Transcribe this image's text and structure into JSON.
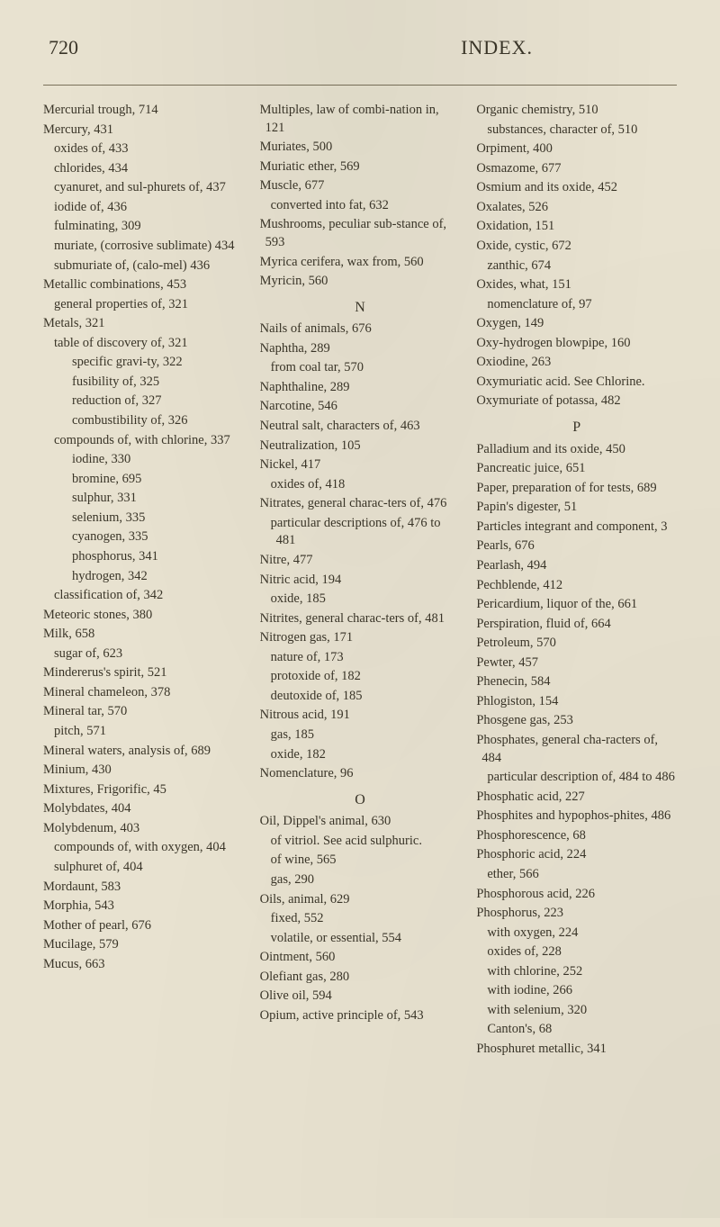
{
  "page_number": "720",
  "title": "INDEX.",
  "columns": [
    [
      {
        "t": "Mercurial trough, 714",
        "cls": "main"
      },
      {
        "t": "Mercury, 431",
        "cls": "main"
      },
      {
        "t": "oxides of, 433",
        "cls": "i1"
      },
      {
        "t": "chlorides, 434",
        "cls": "i1"
      },
      {
        "t": "cyanuret, and sul-phurets of, 437",
        "cls": "i1"
      },
      {
        "t": "iodide of, 436",
        "cls": "i1"
      },
      {
        "t": "fulminating, 309",
        "cls": "i1"
      },
      {
        "t": "muriate, (corrosive sublimate) 434",
        "cls": "i1"
      },
      {
        "t": "submuriate of, (calo-mel) 436",
        "cls": "i1"
      },
      {
        "t": "Metallic combinations, 453",
        "cls": "main"
      },
      {
        "t": "general properties of, 321",
        "cls": "i1"
      },
      {
        "t": "Metals, 321",
        "cls": "main"
      },
      {
        "t": "table of discovery of, 321",
        "cls": "i1"
      },
      {
        "t": "specific gravi-ty, 322",
        "cls": "i2"
      },
      {
        "t": "fusibility of, 325",
        "cls": "i2"
      },
      {
        "t": "reduction of, 327",
        "cls": "i2"
      },
      {
        "t": "combustibility of, 326",
        "cls": "i2"
      },
      {
        "t": "compounds of, with chlorine, 337",
        "cls": "i1"
      },
      {
        "t": "iodine, 330",
        "cls": "i2"
      },
      {
        "t": "bromine, 695",
        "cls": "i2"
      },
      {
        "t": "sulphur, 331",
        "cls": "i2"
      },
      {
        "t": "selenium, 335",
        "cls": "i2"
      },
      {
        "t": "cyanogen, 335",
        "cls": "i2"
      },
      {
        "t": "phosphorus, 341",
        "cls": "i2"
      },
      {
        "t": "hydrogen, 342",
        "cls": "i2"
      },
      {
        "t": "classification of, 342",
        "cls": "i1"
      },
      {
        "t": "Meteoric stones, 380",
        "cls": "main"
      },
      {
        "t": "Milk, 658",
        "cls": "main"
      },
      {
        "t": "sugar of, 623",
        "cls": "i1"
      },
      {
        "t": "Mindererus's spirit, 521",
        "cls": "main"
      },
      {
        "t": "Mineral chameleon, 378",
        "cls": "main"
      },
      {
        "t": "Mineral tar, 570",
        "cls": "main"
      },
      {
        "t": "pitch, 571",
        "cls": "i1"
      },
      {
        "t": "Mineral waters, analysis of, 689",
        "cls": "main"
      },
      {
        "t": "Minium, 430",
        "cls": "main"
      },
      {
        "t": "Mixtures, Frigorific, 45",
        "cls": "main"
      },
      {
        "t": "Molybdates, 404",
        "cls": "main"
      },
      {
        "t": "Molybdenum, 403",
        "cls": "main"
      },
      {
        "t": "compounds of, with oxygen, 404",
        "cls": "i1"
      },
      {
        "t": "sulphuret of, 404",
        "cls": "i1"
      },
      {
        "t": "Mordaunt, 583",
        "cls": "main"
      },
      {
        "t": "Morphia, 543",
        "cls": "main"
      },
      {
        "t": "Mother of pearl, 676",
        "cls": "main"
      },
      {
        "t": "Mucilage, 579",
        "cls": "main"
      },
      {
        "t": "Mucus, 663",
        "cls": "main"
      }
    ],
    [
      {
        "t": "Multiples, law of combi-nation in, 121",
        "cls": "main"
      },
      {
        "t": "Muriates, 500",
        "cls": "main"
      },
      {
        "t": "Muriatic ether, 569",
        "cls": "main"
      },
      {
        "t": "Muscle, 677",
        "cls": "main"
      },
      {
        "t": "converted into fat, 632",
        "cls": "i1"
      },
      {
        "t": "Mushrooms, peculiar sub-stance of, 593",
        "cls": "main"
      },
      {
        "t": "Myrica cerifera, wax from, 560",
        "cls": "main"
      },
      {
        "t": "Myricin, 560",
        "cls": "main"
      },
      {
        "t": "N",
        "cls": "section-letter"
      },
      {
        "t": "Nails of animals, 676",
        "cls": "main"
      },
      {
        "t": "Naphtha, 289",
        "cls": "main"
      },
      {
        "t": "from coal tar, 570",
        "cls": "i1"
      },
      {
        "t": "Naphthaline, 289",
        "cls": "main"
      },
      {
        "t": "Narcotine, 546",
        "cls": "main"
      },
      {
        "t": "Neutral salt, characters of, 463",
        "cls": "main"
      },
      {
        "t": "Neutralization, 105",
        "cls": "main"
      },
      {
        "t": "Nickel, 417",
        "cls": "main"
      },
      {
        "t": "oxides of, 418",
        "cls": "i1"
      },
      {
        "t": "Nitrates, general charac-ters of, 476",
        "cls": "main"
      },
      {
        "t": "particular descriptions of, 476 to 481",
        "cls": "i1"
      },
      {
        "t": "Nitre, 477",
        "cls": "main"
      },
      {
        "t": "Nitric acid, 194",
        "cls": "main"
      },
      {
        "t": "oxide, 185",
        "cls": "i1"
      },
      {
        "t": "Nitrites, general charac-ters of, 481",
        "cls": "main"
      },
      {
        "t": "Nitrogen gas, 171",
        "cls": "main"
      },
      {
        "t": "nature of, 173",
        "cls": "i1"
      },
      {
        "t": "protoxide of, 182",
        "cls": "i1"
      },
      {
        "t": "deutoxide of, 185",
        "cls": "i1"
      },
      {
        "t": "Nitrous acid, 191",
        "cls": "main"
      },
      {
        "t": "gas, 185",
        "cls": "i1"
      },
      {
        "t": "oxide, 182",
        "cls": "i1"
      },
      {
        "t": "Nomenclature, 96",
        "cls": "main"
      },
      {
        "t": "O",
        "cls": "section-letter"
      },
      {
        "t": "Oil, Dippel's animal, 630",
        "cls": "main"
      },
      {
        "t": "of vitriol. See acid sulphuric.",
        "cls": "i1"
      },
      {
        "t": "of wine, 565",
        "cls": "i1"
      },
      {
        "t": "gas, 290",
        "cls": "i1"
      },
      {
        "t": "Oils, animal, 629",
        "cls": "main"
      },
      {
        "t": "fixed, 552",
        "cls": "i1"
      },
      {
        "t": "volatile, or essential, 554",
        "cls": "i1"
      },
      {
        "t": "Ointment, 560",
        "cls": "main"
      },
      {
        "t": "Olefiant gas, 280",
        "cls": "main"
      },
      {
        "t": "Olive oil, 594",
        "cls": "main"
      },
      {
        "t": "Opium, active principle of, 543",
        "cls": "main"
      }
    ],
    [
      {
        "t": "Organic chemistry, 510",
        "cls": "main"
      },
      {
        "t": "substances, character of, 510",
        "cls": "i1"
      },
      {
        "t": "Orpiment, 400",
        "cls": "main"
      },
      {
        "t": "Osmazome, 677",
        "cls": "main"
      },
      {
        "t": "Osmium and its oxide, 452",
        "cls": "main"
      },
      {
        "t": "Oxalates, 526",
        "cls": "main"
      },
      {
        "t": "Oxidation, 151",
        "cls": "main"
      },
      {
        "t": "Oxide, cystic, 672",
        "cls": "main"
      },
      {
        "t": "zanthic, 674",
        "cls": "i1"
      },
      {
        "t": "Oxides, what, 151",
        "cls": "main"
      },
      {
        "t": "nomenclature of, 97",
        "cls": "i1"
      },
      {
        "t": "Oxygen, 149",
        "cls": "main"
      },
      {
        "t": "Oxy-hydrogen blowpipe, 160",
        "cls": "main"
      },
      {
        "t": "Oxiodine, 263",
        "cls": "main"
      },
      {
        "t": "Oxymuriatic acid. See Chlorine.",
        "cls": "main"
      },
      {
        "t": "Oxymuriate of potassa, 482",
        "cls": "main"
      },
      {
        "t": "P",
        "cls": "section-letter"
      },
      {
        "t": "Palladium and its oxide, 450",
        "cls": "main"
      },
      {
        "t": "Pancreatic juice, 651",
        "cls": "main"
      },
      {
        "t": "Paper, preparation of for tests, 689",
        "cls": "main"
      },
      {
        "t": "Papin's digester, 51",
        "cls": "main"
      },
      {
        "t": "Particles integrant and component, 3",
        "cls": "main"
      },
      {
        "t": "Pearls, 676",
        "cls": "main"
      },
      {
        "t": "Pearlash, 494",
        "cls": "main"
      },
      {
        "t": "Pechblende, 412",
        "cls": "main"
      },
      {
        "t": "Pericardium, liquor of the, 661",
        "cls": "main"
      },
      {
        "t": "Perspiration, fluid of, 664",
        "cls": "main"
      },
      {
        "t": "Petroleum, 570",
        "cls": "main"
      },
      {
        "t": "Pewter, 457",
        "cls": "main"
      },
      {
        "t": "Phenecin, 584",
        "cls": "main"
      },
      {
        "t": "Phlogiston, 154",
        "cls": "main"
      },
      {
        "t": "Phosgene gas, 253",
        "cls": "main"
      },
      {
        "t": "Phosphates, general cha-racters of, 484",
        "cls": "main"
      },
      {
        "t": "particular description of, 484 to 486",
        "cls": "i1"
      },
      {
        "t": "Phosphatic acid, 227",
        "cls": "main"
      },
      {
        "t": "Phosphites and hypophos-phites, 486",
        "cls": "main"
      },
      {
        "t": "Phosphorescence, 68",
        "cls": "main"
      },
      {
        "t": "Phosphoric acid, 224",
        "cls": "main"
      },
      {
        "t": "ether, 566",
        "cls": "i1"
      },
      {
        "t": "Phosphorous acid, 226",
        "cls": "main"
      },
      {
        "t": "Phosphorus, 223",
        "cls": "main"
      },
      {
        "t": "with oxygen, 224",
        "cls": "i1"
      },
      {
        "t": "oxides of, 228",
        "cls": "i1"
      },
      {
        "t": "with chlorine, 252",
        "cls": "i1"
      },
      {
        "t": "with iodine, 266",
        "cls": "i1"
      },
      {
        "t": "with selenium, 320",
        "cls": "i1"
      },
      {
        "t": "Canton's, 68",
        "cls": "i1"
      },
      {
        "t": "Phosphuret metallic, 341",
        "cls": "main"
      }
    ]
  ]
}
